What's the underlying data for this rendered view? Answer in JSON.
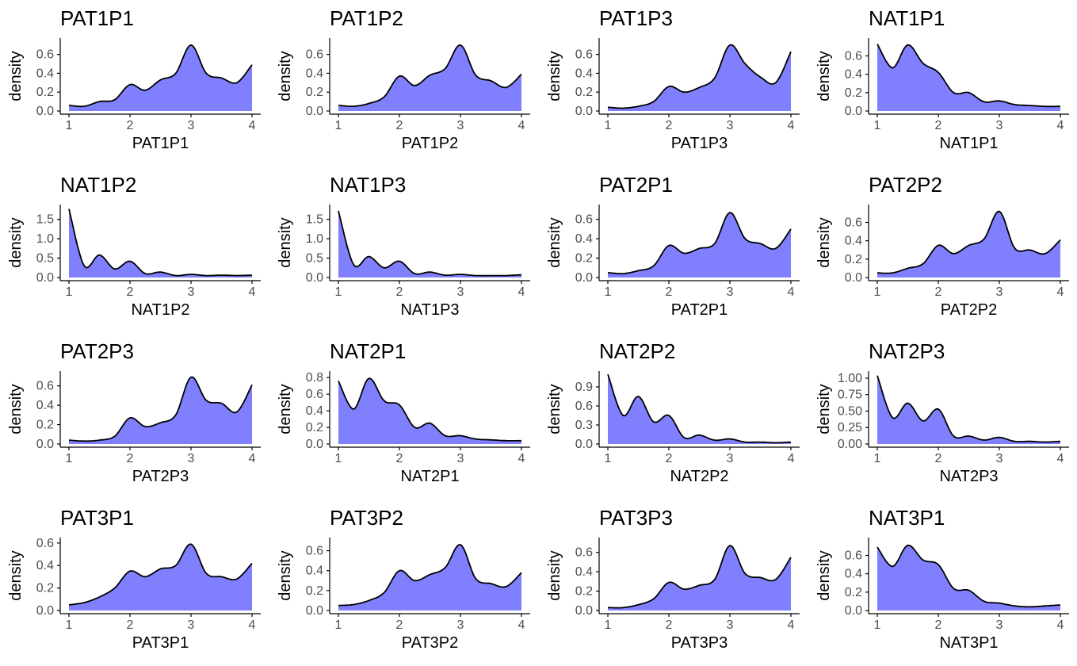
{
  "chart_data": [
    {
      "type": "area",
      "title": "PAT1P1",
      "xlabel": "PAT1P1",
      "ylabel": "density",
      "xlim": [
        1,
        4
      ],
      "xticks": [
        "1",
        "2",
        "3",
        "4"
      ],
      "yticks": [
        "0.0",
        "0.2",
        "0.4",
        "0.6"
      ],
      "ylim": [
        0,
        0.74
      ],
      "x": [
        1,
        1.25,
        1.5,
        1.75,
        2,
        2.25,
        2.5,
        2.75,
        3,
        3.25,
        3.5,
        3.75,
        4
      ],
      "values": [
        0.06,
        0.05,
        0.1,
        0.12,
        0.28,
        0.22,
        0.33,
        0.4,
        0.7,
        0.4,
        0.35,
        0.3,
        0.49
      ]
    },
    {
      "type": "area",
      "title": "PAT1P2",
      "xlabel": "PAT1P2",
      "ylabel": "density",
      "xlim": [
        1,
        4
      ],
      "xticks": [
        "1",
        "2",
        "3",
        "4"
      ],
      "yticks": [
        "0.0",
        "0.2",
        "0.4",
        "0.6"
      ],
      "ylim": [
        0,
        0.74
      ],
      "x": [
        1,
        1.25,
        1.5,
        1.75,
        2,
        2.25,
        2.5,
        2.75,
        3,
        3.25,
        3.5,
        3.75,
        4
      ],
      "values": [
        0.06,
        0.05,
        0.08,
        0.15,
        0.37,
        0.27,
        0.38,
        0.45,
        0.7,
        0.38,
        0.32,
        0.25,
        0.39
      ]
    },
    {
      "type": "area",
      "title": "PAT1P3",
      "xlabel": "PAT1P3",
      "ylabel": "density",
      "xlim": [
        1,
        4
      ],
      "xticks": [
        "1",
        "2",
        "3",
        "4"
      ],
      "yticks": [
        "0.0",
        "0.2",
        "0.4",
        "0.6"
      ],
      "ylim": [
        0,
        0.74
      ],
      "x": [
        1,
        1.25,
        1.5,
        1.75,
        2,
        2.25,
        2.5,
        2.75,
        3,
        3.25,
        3.5,
        3.75,
        4
      ],
      "values": [
        0.04,
        0.03,
        0.05,
        0.1,
        0.26,
        0.2,
        0.25,
        0.35,
        0.7,
        0.5,
        0.36,
        0.3,
        0.63
      ]
    },
    {
      "type": "area",
      "title": "NAT1P1",
      "xlabel": "NAT1P1",
      "ylabel": "density",
      "xlim": [
        1,
        4
      ],
      "xticks": [
        "1",
        "2",
        "3",
        "4"
      ],
      "yticks": [
        "0.0",
        "0.2",
        "0.4",
        "0.6"
      ],
      "ylim": [
        0,
        0.76
      ],
      "x": [
        1,
        1.25,
        1.5,
        1.75,
        2,
        2.25,
        2.5,
        2.75,
        3,
        3.25,
        3.5,
        3.75,
        4
      ],
      "values": [
        0.73,
        0.47,
        0.72,
        0.52,
        0.42,
        0.2,
        0.2,
        0.1,
        0.11,
        0.07,
        0.06,
        0.05,
        0.05
      ]
    },
    {
      "type": "area",
      "title": "NAT1P2",
      "xlabel": "NAT1P2",
      "ylabel": "density",
      "xlim": [
        1,
        4
      ],
      "xticks": [
        "1",
        "2",
        "3",
        "4"
      ],
      "yticks": [
        "0.0",
        "0.5",
        "1.0",
        "1.5"
      ],
      "ylim": [
        0,
        1.8
      ],
      "x": [
        1,
        1.25,
        1.5,
        1.75,
        2,
        2.25,
        2.5,
        2.75,
        3,
        3.25,
        3.5,
        3.75,
        4
      ],
      "values": [
        1.77,
        0.3,
        0.58,
        0.22,
        0.42,
        0.1,
        0.14,
        0.05,
        0.08,
        0.05,
        0.06,
        0.05,
        0.06
      ]
    },
    {
      "type": "area",
      "title": "NAT1P3",
      "xlabel": "NAT1P3",
      "ylabel": "density",
      "xlim": [
        1,
        4
      ],
      "xticks": [
        "1",
        "2",
        "3",
        "4"
      ],
      "yticks": [
        "0.0",
        "0.5",
        "1.0",
        "1.5"
      ],
      "ylim": [
        0,
        1.8
      ],
      "x": [
        1,
        1.25,
        1.5,
        1.75,
        2,
        2.25,
        2.5,
        2.75,
        3,
        3.25,
        3.5,
        3.75,
        4
      ],
      "values": [
        1.72,
        0.33,
        0.54,
        0.25,
        0.42,
        0.1,
        0.14,
        0.06,
        0.08,
        0.05,
        0.05,
        0.05,
        0.07
      ]
    },
    {
      "type": "area",
      "title": "PAT2P1",
      "xlabel": "PAT2P1",
      "ylabel": "density",
      "xlim": [
        1,
        4
      ],
      "xticks": [
        "1",
        "2",
        "3",
        "4"
      ],
      "yticks": [
        "0.0",
        "0.2",
        "0.4",
        "0.6"
      ],
      "ylim": [
        0,
        0.72
      ],
      "x": [
        1,
        1.25,
        1.5,
        1.75,
        2,
        2.25,
        2.5,
        2.75,
        3,
        3.25,
        3.5,
        3.75,
        4
      ],
      "values": [
        0.05,
        0.04,
        0.07,
        0.12,
        0.33,
        0.25,
        0.3,
        0.35,
        0.67,
        0.4,
        0.35,
        0.3,
        0.5
      ]
    },
    {
      "type": "area",
      "title": "PAT2P2",
      "xlabel": "PAT2P2",
      "ylabel": "density",
      "xlim": [
        1,
        4
      ],
      "xticks": [
        "1",
        "2",
        "3",
        "4"
      ],
      "yticks": [
        "0.0",
        "0.2",
        "0.4",
        "0.6"
      ],
      "ylim": [
        0,
        0.76
      ],
      "x": [
        1,
        1.25,
        1.5,
        1.75,
        2,
        2.25,
        2.5,
        2.75,
        3,
        3.25,
        3.5,
        3.75,
        4
      ],
      "values": [
        0.05,
        0.05,
        0.1,
        0.15,
        0.35,
        0.26,
        0.35,
        0.42,
        0.72,
        0.32,
        0.3,
        0.26,
        0.41
      ]
    },
    {
      "type": "area",
      "title": "PAT2P3",
      "xlabel": "PAT2P3",
      "ylabel": "density",
      "xlim": [
        1,
        4
      ],
      "xticks": [
        "1",
        "2",
        "3",
        "4"
      ],
      "yticks": [
        "0.0",
        "0.2",
        "0.4",
        "0.6"
      ],
      "ylim": [
        0,
        0.72
      ],
      "x": [
        1,
        1.25,
        1.5,
        1.75,
        2,
        2.25,
        2.5,
        2.75,
        3,
        3.25,
        3.5,
        3.75,
        4
      ],
      "values": [
        0.04,
        0.03,
        0.04,
        0.08,
        0.27,
        0.18,
        0.22,
        0.3,
        0.69,
        0.45,
        0.42,
        0.33,
        0.61
      ]
    },
    {
      "type": "area",
      "title": "NAT2P1",
      "xlabel": "NAT2P1",
      "ylabel": "density",
      "xlim": [
        1,
        4
      ],
      "xticks": [
        "1",
        "2",
        "3",
        "4"
      ],
      "yticks": [
        "0.0",
        "0.2",
        "0.4",
        "0.6",
        "0.8"
      ],
      "ylim": [
        0,
        0.84
      ],
      "x": [
        1,
        1.25,
        1.5,
        1.75,
        2,
        2.25,
        2.5,
        2.75,
        3,
        3.25,
        3.5,
        3.75,
        4
      ],
      "values": [
        0.76,
        0.42,
        0.79,
        0.52,
        0.47,
        0.2,
        0.25,
        0.1,
        0.1,
        0.06,
        0.05,
        0.04,
        0.04
      ]
    },
    {
      "type": "area",
      "title": "NAT2P2",
      "xlabel": "NAT2P2",
      "ylabel": "density",
      "xlim": [
        1,
        4
      ],
      "xticks": [
        "1",
        "2",
        "3",
        "4"
      ],
      "yticks": [
        "0.0",
        "0.3",
        "0.6",
        "0.9"
      ],
      "ylim": [
        0,
        1.1
      ],
      "x": [
        1,
        1.25,
        1.5,
        1.75,
        2,
        2.25,
        2.5,
        2.75,
        3,
        3.25,
        3.5,
        3.75,
        4
      ],
      "values": [
        1.1,
        0.45,
        0.75,
        0.35,
        0.45,
        0.1,
        0.14,
        0.06,
        0.08,
        0.03,
        0.03,
        0.02,
        0.03
      ]
    },
    {
      "type": "area",
      "title": "NAT2P3",
      "xlabel": "NAT2P3",
      "ylabel": "density",
      "xlim": [
        1,
        4
      ],
      "xticks": [
        "1",
        "2",
        "3",
        "4"
      ],
      "yticks": [
        "0.00",
        "0.25",
        "0.50",
        "0.75",
        "1.00"
      ],
      "ylim": [
        0,
        1.06
      ],
      "x": [
        1,
        1.25,
        1.5,
        1.75,
        2,
        2.25,
        2.5,
        2.75,
        3,
        3.25,
        3.5,
        3.75,
        4
      ],
      "values": [
        1.04,
        0.4,
        0.62,
        0.35,
        0.53,
        0.12,
        0.12,
        0.06,
        0.1,
        0.04,
        0.04,
        0.03,
        0.04
      ]
    },
    {
      "type": "area",
      "title": "PAT3P1",
      "xlabel": "PAT3P1",
      "ylabel": "density",
      "xlim": [
        1,
        4
      ],
      "xticks": [
        "1",
        "2",
        "3",
        "4"
      ],
      "yticks": [
        "0.0",
        "0.2",
        "0.4",
        "0.6"
      ],
      "ylim": [
        0,
        0.62
      ],
      "x": [
        1,
        1.25,
        1.5,
        1.75,
        2,
        2.25,
        2.5,
        2.75,
        3,
        3.25,
        3.5,
        3.75,
        4
      ],
      "values": [
        0.05,
        0.07,
        0.12,
        0.2,
        0.35,
        0.3,
        0.37,
        0.4,
        0.59,
        0.33,
        0.3,
        0.28,
        0.42
      ]
    },
    {
      "type": "area",
      "title": "PAT3P2",
      "xlabel": "PAT3P2",
      "ylabel": "density",
      "xlim": [
        1,
        4
      ],
      "xticks": [
        "1",
        "2",
        "3",
        "4"
      ],
      "yticks": [
        "0.0",
        "0.2",
        "0.4",
        "0.6"
      ],
      "ylim": [
        0,
        0.7
      ],
      "x": [
        1,
        1.25,
        1.5,
        1.75,
        2,
        2.25,
        2.5,
        2.75,
        3,
        3.25,
        3.5,
        3.75,
        4
      ],
      "values": [
        0.05,
        0.06,
        0.1,
        0.18,
        0.4,
        0.3,
        0.36,
        0.43,
        0.66,
        0.32,
        0.27,
        0.24,
        0.38
      ]
    },
    {
      "type": "area",
      "title": "PAT3P3",
      "xlabel": "PAT3P3",
      "ylabel": "density",
      "xlim": [
        1,
        4
      ],
      "xticks": [
        "1",
        "2",
        "3",
        "4"
      ],
      "yticks": [
        "0.0",
        "0.2",
        "0.4",
        "0.6"
      ],
      "ylim": [
        0,
        0.72
      ],
      "x": [
        1,
        1.25,
        1.5,
        1.75,
        2,
        2.25,
        2.5,
        2.75,
        3,
        3.25,
        3.5,
        3.75,
        4
      ],
      "values": [
        0.03,
        0.03,
        0.06,
        0.12,
        0.29,
        0.22,
        0.26,
        0.32,
        0.67,
        0.38,
        0.34,
        0.32,
        0.55
      ]
    },
    {
      "type": "area",
      "title": "NAT3P1",
      "xlabel": "NAT3P1",
      "ylabel": "density",
      "xlim": [
        1,
        4
      ],
      "xticks": [
        "1",
        "2",
        "3",
        "4"
      ],
      "yticks": [
        "0.0",
        "0.2",
        "0.4",
        "0.6"
      ],
      "ylim": [
        0,
        0.76
      ],
      "x": [
        1,
        1.25,
        1.5,
        1.75,
        2,
        2.25,
        2.5,
        2.75,
        3,
        3.25,
        3.5,
        3.75,
        4
      ],
      "values": [
        0.69,
        0.48,
        0.71,
        0.55,
        0.5,
        0.24,
        0.22,
        0.1,
        0.08,
        0.05,
        0.04,
        0.05,
        0.06
      ]
    }
  ],
  "style": {
    "fill_color": "#8080ff",
    "line_color": "#000000",
    "tick_color": "#4d4d4d"
  }
}
